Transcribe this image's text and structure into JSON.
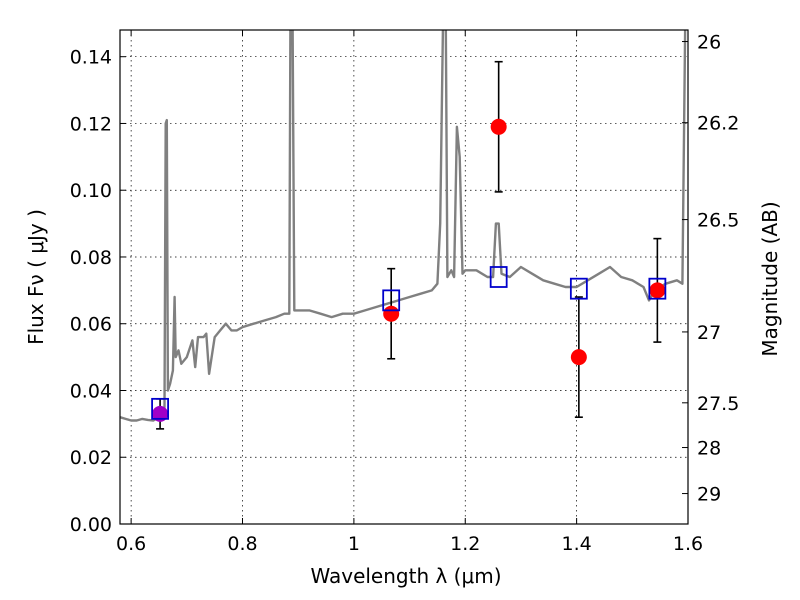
{
  "chart_data": {
    "type": "scatter",
    "title": "",
    "xlabel": "Wavelength  λ (μm)",
    "ylabel": "Flux  Fν  ( μJy )",
    "ylabel_right": "Magnitude (AB)",
    "xlim": [
      0.58,
      1.6
    ],
    "ylim": [
      0.0,
      0.148
    ],
    "grid": true,
    "x_ticks": [
      0.6,
      0.8,
      1.0,
      1.2,
      1.4,
      1.6
    ],
    "x_tick_labels": [
      "0.6",
      "0.8",
      "1",
      "1.2",
      "1.4",
      "1.6"
    ],
    "y_ticks": [
      0.0,
      0.02,
      0.04,
      0.06,
      0.08,
      0.1,
      0.12,
      0.14
    ],
    "y_tick_labels": [
      "0.00",
      "0.02",
      "0.04",
      "0.06",
      "0.08",
      "0.10",
      "0.12",
      "0.14"
    ],
    "right_ticks": [
      26,
      26.2,
      26.5,
      27,
      27.5,
      28,
      29
    ],
    "right_tick_labels": [
      "26",
      "26.2",
      "26.5",
      "27",
      "27.5",
      "28",
      "29"
    ],
    "colors": {
      "model": "#808080",
      "observed": "#ff0000",
      "first_point": "#a000c8",
      "synthetic": "#0000cc",
      "errorbar": "#000000"
    },
    "model_spectrum": [
      [
        0.58,
        0.032
      ],
      [
        0.59,
        0.0315
      ],
      [
        0.6,
        0.031
      ],
      [
        0.61,
        0.031
      ],
      [
        0.62,
        0.0315
      ],
      [
        0.63,
        0.0312
      ],
      [
        0.64,
        0.031
      ],
      [
        0.65,
        0.032
      ],
      [
        0.655,
        0.0335
      ],
      [
        0.66,
        0.035
      ],
      [
        0.662,
        0.12
      ],
      [
        0.664,
        0.121
      ],
      [
        0.666,
        0.04
      ],
      [
        0.67,
        0.042
      ],
      [
        0.675,
        0.046
      ],
      [
        0.678,
        0.068
      ],
      [
        0.68,
        0.05
      ],
      [
        0.685,
        0.052
      ],
      [
        0.69,
        0.048
      ],
      [
        0.7,
        0.05
      ],
      [
        0.71,
        0.055
      ],
      [
        0.715,
        0.047
      ],
      [
        0.72,
        0.056
      ],
      [
        0.73,
        0.056
      ],
      [
        0.735,
        0.057
      ],
      [
        0.74,
        0.045
      ],
      [
        0.75,
        0.056
      ],
      [
        0.76,
        0.058
      ],
      [
        0.77,
        0.06
      ],
      [
        0.78,
        0.058
      ],
      [
        0.79,
        0.058
      ],
      [
        0.8,
        0.059
      ],
      [
        0.82,
        0.06
      ],
      [
        0.84,
        0.061
      ],
      [
        0.86,
        0.062
      ],
      [
        0.875,
        0.063
      ],
      [
        0.884,
        0.063
      ],
      [
        0.886,
        0.15
      ],
      [
        0.89,
        0.15
      ],
      [
        0.893,
        0.064
      ],
      [
        0.9,
        0.064
      ],
      [
        0.92,
        0.064
      ],
      [
        0.94,
        0.063
      ],
      [
        0.96,
        0.062
      ],
      [
        0.98,
        0.063
      ],
      [
        1.0,
        0.063
      ],
      [
        1.02,
        0.064
      ],
      [
        1.04,
        0.065
      ],
      [
        1.06,
        0.066
      ],
      [
        1.08,
        0.067
      ],
      [
        1.1,
        0.068
      ],
      [
        1.12,
        0.069
      ],
      [
        1.14,
        0.07
      ],
      [
        1.15,
        0.072
      ],
      [
        1.155,
        0.09
      ],
      [
        1.16,
        0.15
      ],
      [
        1.165,
        0.15
      ],
      [
        1.168,
        0.074
      ],
      [
        1.175,
        0.076
      ],
      [
        1.18,
        0.074
      ],
      [
        1.185,
        0.119
      ],
      [
        1.19,
        0.11
      ],
      [
        1.195,
        0.075
      ],
      [
        1.2,
        0.076
      ],
      [
        1.22,
        0.076
      ],
      [
        1.24,
        0.074
      ],
      [
        1.25,
        0.074
      ],
      [
        1.255,
        0.09
      ],
      [
        1.26,
        0.09
      ],
      [
        1.265,
        0.075
      ],
      [
        1.28,
        0.074
      ],
      [
        1.3,
        0.077
      ],
      [
        1.32,
        0.075
      ],
      [
        1.34,
        0.073
      ],
      [
        1.36,
        0.072
      ],
      [
        1.38,
        0.071
      ],
      [
        1.4,
        0.071
      ],
      [
        1.42,
        0.073
      ],
      [
        1.44,
        0.075
      ],
      [
        1.46,
        0.077
      ],
      [
        1.48,
        0.074
      ],
      [
        1.5,
        0.073
      ],
      [
        1.52,
        0.071
      ],
      [
        1.53,
        0.067
      ],
      [
        1.54,
        0.07
      ],
      [
        1.56,
        0.072
      ],
      [
        1.58,
        0.073
      ],
      [
        1.59,
        0.072
      ],
      [
        1.595,
        0.15
      ],
      [
        1.6,
        0.15
      ]
    ],
    "observed_points": [
      {
        "x": 0.652,
        "y": 0.033,
        "yerr_low": 0.0045,
        "yerr_high": 0.0045
      },
      {
        "x": 1.067,
        "y": 0.063,
        "yerr_low": 0.0135,
        "yerr_high": 0.0135
      },
      {
        "x": 1.26,
        "y": 0.119,
        "yerr_low": 0.0195,
        "yerr_high": 0.0195
      },
      {
        "x": 1.404,
        "y": 0.05,
        "yerr_low": 0.018,
        "yerr_high": 0.018
      },
      {
        "x": 1.545,
        "y": 0.07,
        "yerr_low": 0.0155,
        "yerr_high": 0.0155
      }
    ],
    "synthetic_points": [
      {
        "x": 0.652,
        "y": 0.0345
      },
      {
        "x": 1.067,
        "y": 0.067
      },
      {
        "x": 1.26,
        "y": 0.074
      },
      {
        "x": 1.404,
        "y": 0.0705
      },
      {
        "x": 1.545,
        "y": 0.0705
      }
    ]
  }
}
